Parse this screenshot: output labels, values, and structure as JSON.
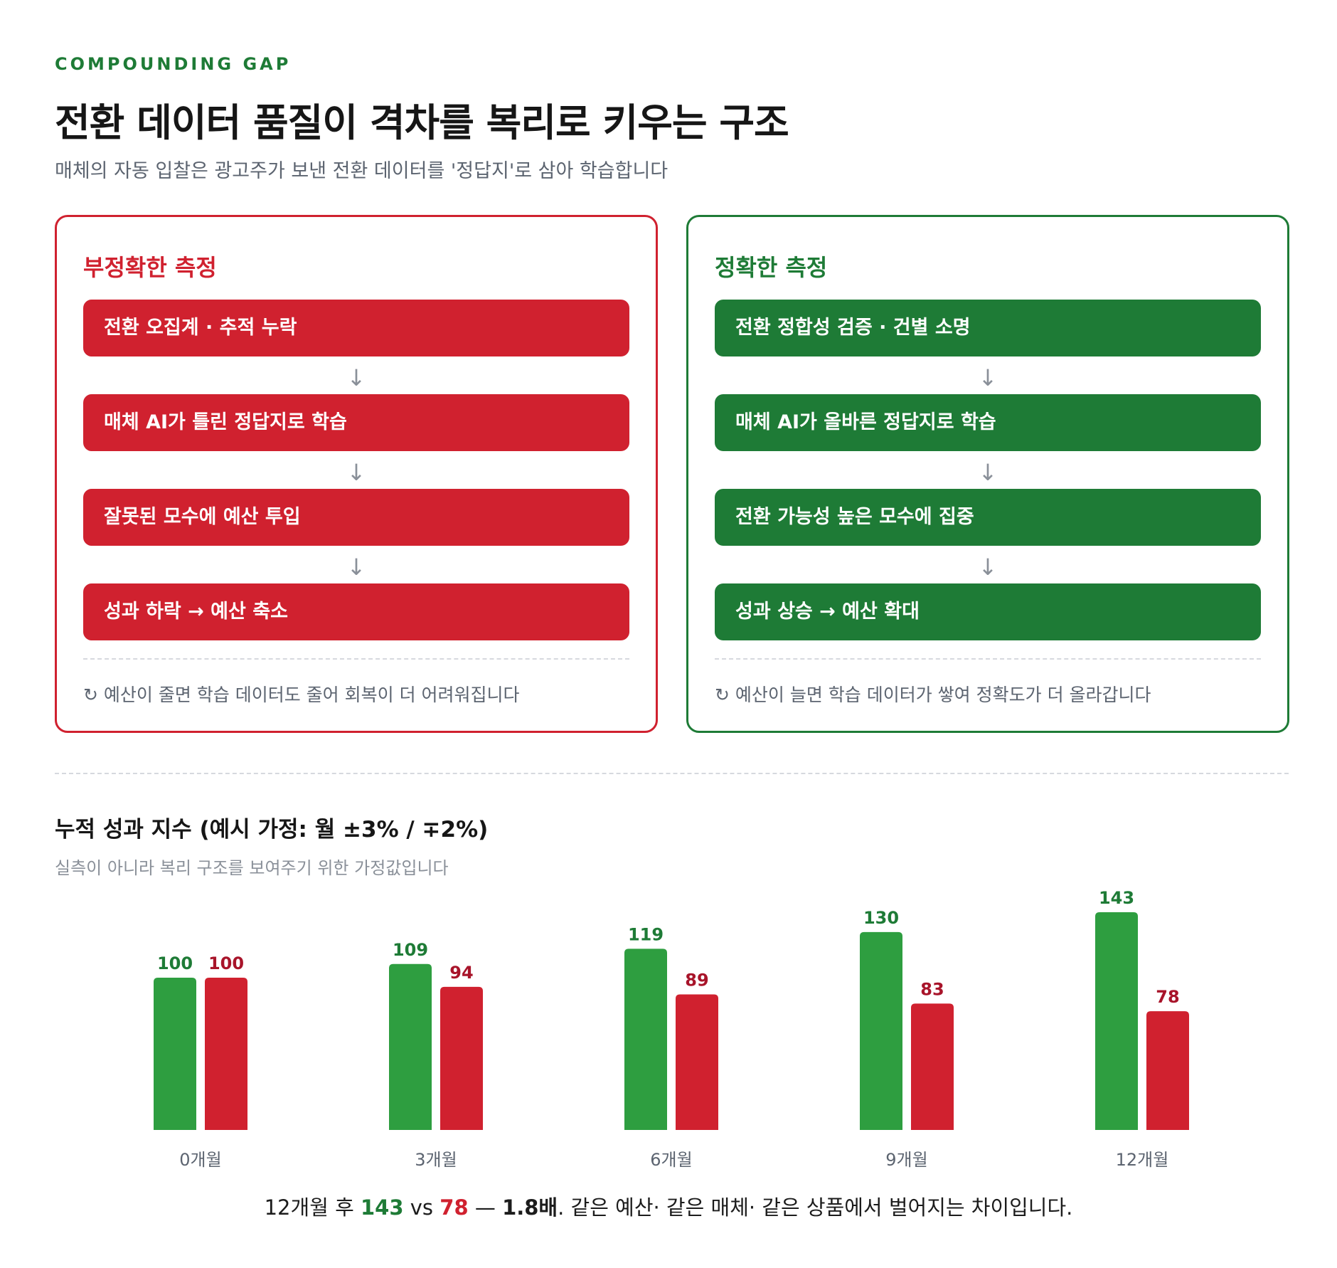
{
  "header": {
    "eyebrow": "COMPOUNDING GAP",
    "title": "전환 데이터 품질이 격차를 복리로 키우는 구조",
    "subtitle": "매체의 자동 입찰은 광고주가 보낸 전환 데이터를 '정답지'로 삼아 학습합니다"
  },
  "panels": {
    "bad": {
      "title": "부정확한 측정",
      "steps": [
        "전환 오집계 · 추적 누락",
        "매체 AI가 틀린 정답지로 학습",
        "잘못된 모수에 예산 투입",
        "성과 하락 → 예산 축소"
      ],
      "arrow": "↓",
      "note": "↻ 예산이 줄면 학습 데이터도 줄어 회복이 더 어려워집니다"
    },
    "good": {
      "title": "정확한 측정",
      "steps": [
        "전환 정합성 검증 · 건별 소명",
        "매체 AI가 올바른 정답지로 학습",
        "전환 가능성 높은 모수에 집중",
        "성과 상승 → 예산 확대"
      ],
      "arrow": "↓",
      "note": "↻ 예산이 늘면 학습 데이터가 쌓여 정확도가 더 올라갑니다"
    }
  },
  "chart_section": {
    "title": "누적 성과 지수 (예시 가정: 월 ±3% / ∓2%)",
    "subtitle": "실측이 아니라 복리 구조를 보여주기 위한 가정값입니다"
  },
  "chart_data": {
    "type": "bar",
    "categories": [
      "0개월",
      "3개월",
      "6개월",
      "9개월",
      "12개월"
    ],
    "series": [
      {
        "values": [
          100,
          109,
          119,
          130,
          143
        ],
        "color": "#2e9e40",
        "label_color": "#1e7b36"
      },
      {
        "values": [
          100,
          94,
          89,
          83,
          78
        ],
        "color": "#d0212f",
        "label_color": "#a8142a"
      }
    ],
    "title": "누적 성과 지수 (예시 가정: 월 ±3% / ∓2%)",
    "ylim": [
      0,
      143
    ],
    "grid": false,
    "legend": "none"
  },
  "summary": {
    "prefix": "12개월 후 ",
    "good_value": "143",
    "vs": " vs ",
    "bad_value": "78",
    "dash": " — ",
    "ratio": "1.8배",
    "suffix": ". 같은 예산· 같은 매체· 같은 상품에서 벌어지는 차이입니다."
  },
  "colors": {
    "accent_green": "#1e7b36",
    "accent_red": "#d0212f",
    "bar_green": "#2e9e40",
    "muted_text": "#5c6470"
  }
}
